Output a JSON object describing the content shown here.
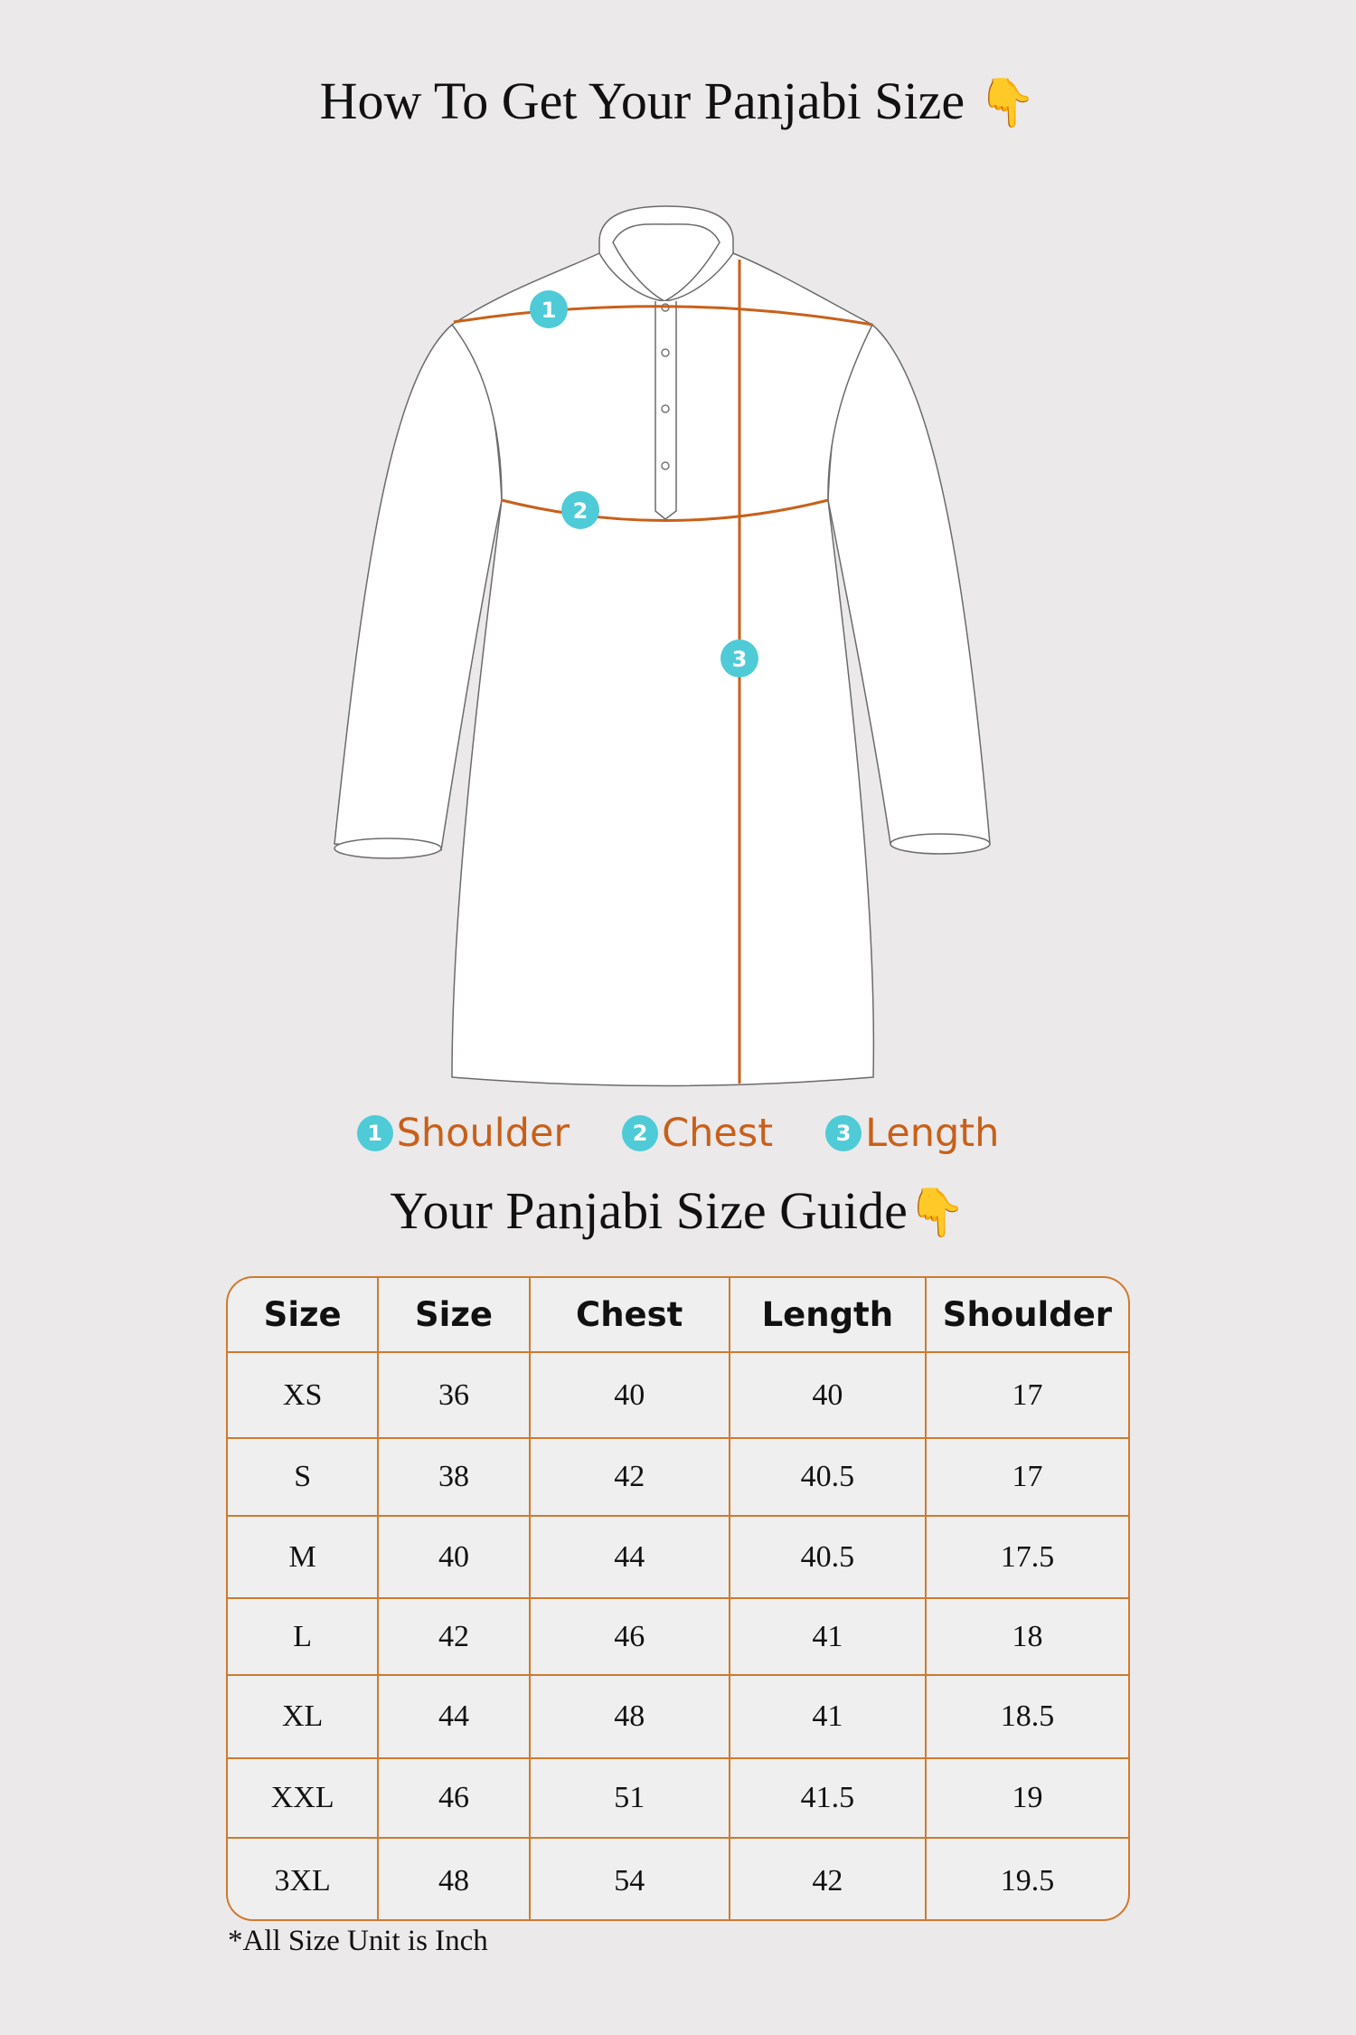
{
  "title": "How To Get Your Panjabi Size",
  "title_emoji": "👇",
  "diagram": {
    "markers": [
      "1",
      "2",
      "3"
    ],
    "colors": {
      "measure_line": "#c8601a",
      "badge": "#4ecbd6"
    }
  },
  "legend": [
    {
      "num": "1",
      "label": "Shoulder"
    },
    {
      "num": "2",
      "label": "Chest"
    },
    {
      "num": "3",
      "label": "Length"
    }
  ],
  "guide_title": "Your Panjabi Size Guide",
  "guide_emoji": "👇",
  "table": {
    "headers": [
      "Size",
      "Size",
      "Chest",
      "Length",
      "Shoulder"
    ],
    "rows": [
      [
        "XS",
        "36",
        "40",
        "40",
        "17"
      ],
      [
        "S",
        "38",
        "42",
        "40.5",
        "17"
      ],
      [
        "M",
        "40",
        "44",
        "40.5",
        "17.5"
      ],
      [
        "L",
        "42",
        "46",
        "41",
        "18"
      ],
      [
        "XL",
        "44",
        "48",
        "41",
        "18.5"
      ],
      [
        "XXL",
        "46",
        "51",
        "41.5",
        "19"
      ],
      [
        "3XL",
        "48",
        "54",
        "42",
        "19.5"
      ]
    ]
  },
  "footnote": "*All Size Unit is Inch"
}
